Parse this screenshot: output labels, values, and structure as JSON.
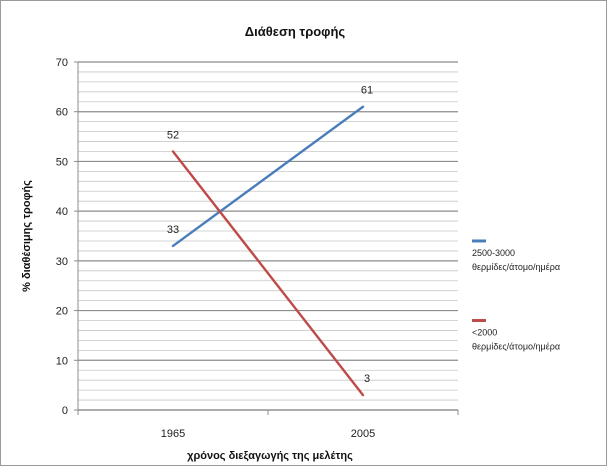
{
  "chart_data": {
    "type": "line",
    "title": "Διάθεση τροφής",
    "xlabel": "χρόνος διεξαγωγής της μελέτης",
    "ylabel": "% διαθέσιμης τροφής",
    "categories": [
      "1965",
      "2005"
    ],
    "ylim": [
      0,
      70
    ],
    "yticks": [
      0,
      10,
      20,
      30,
      40,
      50,
      60,
      70
    ],
    "grid": true,
    "legend_position": "right",
    "series": [
      {
        "name_line1": "2500-3000",
        "name_line2": "θερμίδες/άτομο/ημέρα",
        "values": [
          33,
          61
        ],
        "color": "#4a7ebb"
      },
      {
        "name_line1": "<2000",
        "name_line2": "θερμίδες/άτομο/ημέρα",
        "values": [
          52,
          3
        ],
        "color": "#be4b48"
      }
    ]
  }
}
